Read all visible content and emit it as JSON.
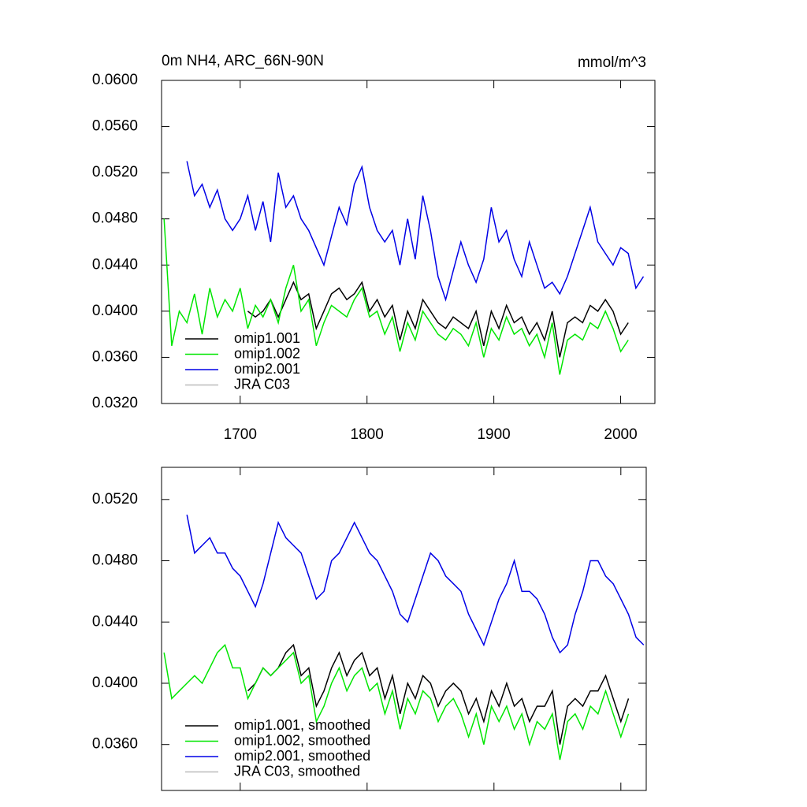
{
  "chart_data": [
    {
      "type": "line",
      "title": "0m NH4, ARC_66N-90N",
      "units": "mmol/m^3",
      "x": [
        1640,
        1646,
        1652,
        1658,
        1664,
        1670,
        1676,
        1682,
        1688,
        1694,
        1700,
        1706,
        1712,
        1718,
        1724,
        1730,
        1736,
        1742,
        1748,
        1754,
        1760,
        1766,
        1772,
        1778,
        1784,
        1790,
        1796,
        1802,
        1808,
        1814,
        1820,
        1826,
        1832,
        1838,
        1844,
        1850,
        1856,
        1862,
        1868,
        1874,
        1880,
        1886,
        1892,
        1898,
        1904,
        1910,
        1916,
        1922,
        1928,
        1934,
        1940,
        1946,
        1952,
        1958,
        1964,
        1970,
        1976,
        1982,
        1988,
        1994,
        2000,
        2006,
        2012,
        2018
      ],
      "xlim": [
        1638,
        2027
      ],
      "xticks": [
        1700,
        1800,
        1900,
        2000
      ],
      "ylim": [
        0.032,
        0.06
      ],
      "yticks": [
        {
          "value": 0.032,
          "label": "0.0320"
        },
        {
          "value": 0.036,
          "label": "0.0360"
        },
        {
          "value": 0.04,
          "label": "0.0400"
        },
        {
          "value": 0.044,
          "label": "0.0440"
        },
        {
          "value": 0.048,
          "label": "0.0480"
        },
        {
          "value": 0.052,
          "label": "0.0520"
        },
        {
          "value": 0.056,
          "label": "0.0560"
        },
        {
          "value": 0.06,
          "label": "0.0600"
        }
      ],
      "legend": "lower-left",
      "series": [
        {
          "name": "omip1.001",
          "color": "#000000",
          "values": [
            null,
            null,
            null,
            null,
            null,
            null,
            null,
            null,
            null,
            null,
            null,
            0.04,
            0.0395,
            0.04,
            0.041,
            0.0395,
            0.041,
            0.0425,
            0.041,
            0.0415,
            0.0385,
            0.04,
            0.0415,
            0.042,
            0.041,
            0.0415,
            0.0425,
            0.04,
            0.041,
            0.0395,
            0.0405,
            0.0375,
            0.04,
            0.0385,
            0.041,
            0.04,
            0.039,
            0.0385,
            0.0395,
            0.039,
            0.0385,
            0.04,
            0.037,
            0.04,
            0.0385,
            0.0405,
            0.039,
            0.0395,
            0.038,
            0.039,
            0.0375,
            0.04,
            0.036,
            0.039,
            0.0395,
            0.039,
            0.0405,
            0.04,
            0.041,
            0.04,
            0.038,
            0.039,
            null,
            null
          ]
        },
        {
          "name": "omip1.002",
          "color": "#00e600",
          "values": [
            0.048,
            0.037,
            0.04,
            0.039,
            0.0415,
            0.038,
            0.042,
            0.0395,
            0.041,
            0.04,
            0.042,
            0.0385,
            0.0405,
            0.0395,
            0.041,
            0.039,
            0.042,
            0.044,
            0.04,
            0.041,
            0.037,
            0.039,
            0.0405,
            0.04,
            0.0395,
            0.041,
            0.042,
            0.0395,
            0.04,
            0.038,
            0.0395,
            0.0365,
            0.039,
            0.0375,
            0.04,
            0.039,
            0.038,
            0.0375,
            0.0385,
            0.038,
            0.037,
            0.039,
            0.036,
            0.0385,
            0.0375,
            0.0395,
            0.038,
            0.0385,
            0.037,
            0.038,
            0.036,
            0.039,
            0.0345,
            0.0375,
            0.038,
            0.0375,
            0.039,
            0.0385,
            0.04,
            0.0385,
            0.0365,
            0.0375,
            null,
            null
          ]
        },
        {
          "name": "omip2.001",
          "color": "#0000e6",
          "values": [
            null,
            null,
            null,
            0.053,
            0.05,
            0.051,
            0.049,
            0.0505,
            0.048,
            0.047,
            0.048,
            0.05,
            0.047,
            0.0495,
            0.046,
            0.052,
            0.049,
            0.05,
            0.048,
            0.047,
            0.0455,
            0.044,
            0.0465,
            0.049,
            0.0475,
            0.051,
            0.0525,
            0.049,
            0.047,
            0.046,
            0.047,
            0.044,
            0.048,
            0.0445,
            0.05,
            0.047,
            0.043,
            0.041,
            0.0435,
            0.046,
            0.044,
            0.0425,
            0.0445,
            0.049,
            0.046,
            0.047,
            0.0445,
            0.043,
            0.046,
            0.044,
            0.042,
            0.0425,
            0.0415,
            0.043,
            0.045,
            0.047,
            0.049,
            0.046,
            0.045,
            0.044,
            0.0455,
            0.045,
            0.042,
            0.043
          ]
        },
        {
          "name": "JRA C03",
          "color": "#bbbbbb",
          "values": [
            null,
            null,
            null,
            null,
            null,
            null,
            null,
            null,
            null,
            null,
            null,
            null,
            null,
            null,
            null,
            null,
            null,
            null,
            null,
            null,
            null,
            null,
            null,
            null,
            null,
            null,
            null,
            null,
            null,
            null,
            null,
            null,
            null,
            null,
            null,
            null,
            null,
            null,
            null,
            null,
            null,
            null,
            null,
            null,
            null,
            null,
            null,
            null,
            null,
            null,
            null,
            null,
            null,
            null,
            null,
            null,
            null,
            null,
            null,
            null,
            null,
            null,
            null,
            null
          ]
        }
      ]
    },
    {
      "type": "line",
      "x": [
        1640,
        1646,
        1652,
        1658,
        1664,
        1670,
        1676,
        1682,
        1688,
        1694,
        1700,
        1706,
        1712,
        1718,
        1724,
        1730,
        1736,
        1742,
        1748,
        1754,
        1760,
        1766,
        1772,
        1778,
        1784,
        1790,
        1796,
        1802,
        1808,
        1814,
        1820,
        1826,
        1832,
        1838,
        1844,
        1850,
        1856,
        1862,
        1868,
        1874,
        1880,
        1886,
        1892,
        1898,
        1904,
        1910,
        1916,
        1922,
        1928,
        1934,
        1940,
        1946,
        1952,
        1958,
        1964,
        1970,
        1976,
        1982,
        1988,
        1994,
        2000,
        2006,
        2012,
        2018
      ],
      "xlim": [
        1638,
        2020
      ],
      "xticks": [
        1700,
        1800,
        1900,
        2000
      ],
      "ylim": [
        0.033,
        0.0541
      ],
      "yticks": [
        {
          "value": 0.036,
          "label": "0.0360"
        },
        {
          "value": 0.04,
          "label": "0.0400"
        },
        {
          "value": 0.044,
          "label": "0.0440"
        },
        {
          "value": 0.048,
          "label": "0.0480"
        },
        {
          "value": 0.052,
          "label": "0.0520"
        }
      ],
      "legend": "lower-left",
      "series": [
        {
          "name": "omip1.001, smoothed",
          "color": "#000000",
          "values": [
            null,
            null,
            null,
            null,
            null,
            null,
            null,
            null,
            null,
            null,
            null,
            0.0395,
            0.04,
            0.041,
            0.0405,
            0.041,
            0.042,
            0.0425,
            0.0405,
            0.041,
            0.0385,
            0.0395,
            0.041,
            0.042,
            0.0405,
            0.0415,
            0.042,
            0.0405,
            0.041,
            0.039,
            0.0405,
            0.038,
            0.04,
            0.039,
            0.0405,
            0.04,
            0.0385,
            0.0395,
            0.04,
            0.0395,
            0.038,
            0.039,
            0.0375,
            0.0395,
            0.0385,
            0.04,
            0.0385,
            0.039,
            0.0375,
            0.0385,
            0.0385,
            0.0395,
            0.036,
            0.0385,
            0.039,
            0.0385,
            0.0395,
            0.0395,
            0.0405,
            0.039,
            0.0375,
            0.039,
            null,
            null
          ]
        },
        {
          "name": "omip1.002, smoothed",
          "color": "#00e600",
          "values": [
            0.042,
            0.039,
            0.0395,
            0.04,
            0.0405,
            0.04,
            0.041,
            0.042,
            0.0425,
            0.041,
            0.041,
            0.039,
            0.04,
            0.041,
            0.0405,
            0.041,
            0.0415,
            0.042,
            0.04,
            0.0405,
            0.0375,
            0.0385,
            0.04,
            0.041,
            0.0395,
            0.0405,
            0.041,
            0.0395,
            0.04,
            0.038,
            0.0395,
            0.037,
            0.039,
            0.038,
            0.0395,
            0.039,
            0.0375,
            0.0385,
            0.039,
            0.038,
            0.0365,
            0.038,
            0.036,
            0.0385,
            0.0375,
            0.0385,
            0.037,
            0.038,
            0.036,
            0.0375,
            0.037,
            0.038,
            0.035,
            0.0375,
            0.038,
            0.037,
            0.0385,
            0.038,
            0.0395,
            0.038,
            0.0365,
            0.038,
            null,
            null
          ]
        },
        {
          "name": "omip2.001, smoothed",
          "color": "#0000e6",
          "values": [
            null,
            null,
            null,
            0.051,
            0.0485,
            0.049,
            0.0495,
            0.0485,
            0.0485,
            0.0475,
            0.047,
            0.046,
            0.045,
            0.0465,
            0.0485,
            0.0505,
            0.0495,
            0.049,
            0.0485,
            0.047,
            0.0455,
            0.046,
            0.048,
            0.0485,
            0.0495,
            0.0505,
            0.0495,
            0.0485,
            0.048,
            0.047,
            0.046,
            0.0445,
            0.044,
            0.0455,
            0.047,
            0.0485,
            0.048,
            0.047,
            0.0465,
            0.046,
            0.0445,
            0.0435,
            0.0425,
            0.044,
            0.0455,
            0.0465,
            0.048,
            0.046,
            0.046,
            0.0455,
            0.0445,
            0.043,
            0.042,
            0.0425,
            0.0445,
            0.046,
            0.048,
            0.048,
            0.047,
            0.0465,
            0.0455,
            0.0445,
            0.043,
            0.0425
          ]
        },
        {
          "name": "JRA C03, smoothed",
          "color": "#bbbbbb",
          "values": [
            null,
            null,
            null,
            null,
            null,
            null,
            null,
            null,
            null,
            null,
            null,
            null,
            null,
            null,
            null,
            null,
            null,
            null,
            null,
            null,
            null,
            null,
            null,
            null,
            null,
            null,
            null,
            null,
            null,
            null,
            null,
            null,
            null,
            null,
            null,
            null,
            null,
            null,
            null,
            null,
            null,
            null,
            null,
            null,
            null,
            null,
            null,
            null,
            null,
            null,
            null,
            null,
            null,
            null,
            null,
            null,
            null,
            null,
            null,
            null,
            null,
            null,
            null,
            null
          ]
        }
      ]
    }
  ]
}
